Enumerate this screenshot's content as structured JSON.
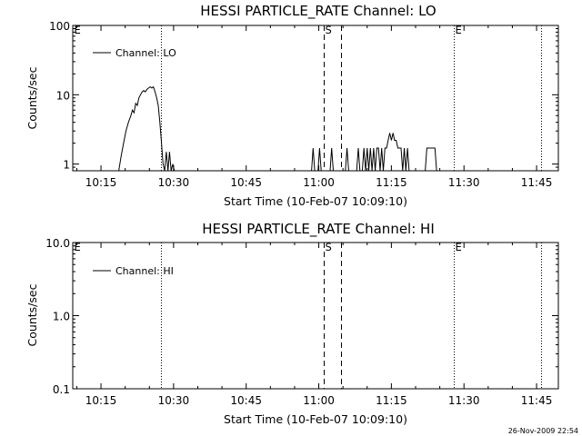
{
  "footer_date": "26-Nov-2009 22:54",
  "chart_data": [
    {
      "type": "line",
      "title": "HESSI PARTICLE_RATE Channel: LO",
      "xlabel": "Start Time (10-Feb-07 10:09:10)",
      "ylabel": "Counts/sec",
      "y_scale": "log",
      "ylim": [
        0.8,
        100
      ],
      "y_ticks": [
        1,
        10,
        100
      ],
      "y_tick_labels": [
        "1",
        "10",
        "100"
      ],
      "xlim": [
        "10:09:10",
        "11:49:30"
      ],
      "x_ticks": [
        "10:15",
        "10:30",
        "10:45",
        "11:00",
        "11:15",
        "11:30",
        "11:45"
      ],
      "legend": {
        "label": "Channel: LO",
        "placement": "top-left"
      },
      "markers": [
        {
          "label": "E",
          "time": "10:09:10",
          "style": "dotted"
        },
        {
          "label": "",
          "time": "10:27:20",
          "style": "dotted"
        },
        {
          "label": "S",
          "time": "11:01:00",
          "style": "dashed"
        },
        {
          "label": "",
          "time": "11:04:40",
          "style": "dashed"
        },
        {
          "label": "E",
          "time": "11:27:50",
          "style": "dotted"
        },
        {
          "label": "",
          "time": "11:46:00",
          "style": "dotted"
        }
      ],
      "series": [
        {
          "x": [
            "10:18:40",
            "10:19:10",
            "10:19:40",
            "10:20:10",
            "10:20:40",
            "10:21:10",
            "10:21:30",
            "10:21:50",
            "10:22:10",
            "10:22:30",
            "10:22:50",
            "10:23:10",
            "10:23:30",
            "10:23:50",
            "10:24:10",
            "10:24:30",
            "10:24:50",
            "10:25:10",
            "10:25:30",
            "10:25:50",
            "10:26:10",
            "10:26:30",
            "10:26:50",
            "10:27:10",
            "10:27:30",
            "10:27:50",
            "10:28:10",
            "10:28:30",
            "10:28:50",
            "10:29:10",
            "10:29:30",
            "10:29:50",
            "10:30:10",
            "10:30:30"
          ],
          "y": [
            0.8,
            1.3,
            2.0,
            3.0,
            4.0,
            5.0,
            6.0,
            5.5,
            7.5,
            7.0,
            9.0,
            10.0,
            11.0,
            11.5,
            11.0,
            12.0,
            12.5,
            13.0,
            12.5,
            13.0,
            11.0,
            9.0,
            7.0,
            4.0,
            2.0,
            1.0,
            0.8,
            1.5,
            0.8,
            1.5,
            0.8,
            1.0,
            0.8,
            0.8
          ]
        },
        {
          "x": [
            "10:58:30",
            "10:58:50",
            "10:59:10",
            "10:59:50",
            "11:00:10",
            "11:00:30",
            "11:02:20",
            "11:02:40",
            "11:03:00",
            "11:05:30",
            "11:05:50",
            "11:06:10",
            "11:07:50",
            "11:08:10",
            "11:08:30",
            "11:09:00",
            "11:09:20",
            "11:09:40",
            "11:10:00",
            "11:10:20",
            "11:10:40",
            "11:11:00",
            "11:11:20",
            "11:11:40",
            "11:12:00",
            "11:12:20",
            "11:12:40",
            "11:13:00",
            "11:13:20",
            "11:13:40",
            "11:14:00",
            "11:14:20",
            "11:14:40",
            "11:15:00",
            "11:15:20",
            "11:15:40",
            "11:16:00",
            "11:16:20",
            "11:16:40",
            "11:17:00",
            "11:17:20",
            "11:17:40",
            "11:18:00",
            "11:18:20",
            "11:18:40",
            "11:19:00",
            "11:22:00",
            "11:22:20",
            "11:23:40",
            "11:24:00",
            "11:24:20"
          ],
          "y": [
            0.8,
            1.7,
            0.8,
            0.8,
            1.7,
            0.8,
            0.8,
            1.7,
            0.8,
            0.8,
            1.7,
            0.8,
            0.8,
            1.7,
            0.8,
            0.8,
            1.7,
            0.8,
            1.7,
            0.8,
            1.7,
            0.8,
            1.7,
            0.8,
            1.7,
            1.7,
            0.8,
            1.7,
            0.8,
            1.7,
            1.7,
            2.2,
            2.8,
            2.2,
            2.8,
            2.2,
            2.2,
            1.7,
            1.7,
            1.7,
            0.8,
            1.7,
            0.8,
            1.7,
            0.8,
            0.8,
            0.8,
            1.7,
            1.7,
            1.7,
            0.8
          ]
        }
      ]
    },
    {
      "type": "line",
      "title": "HESSI PARTICLE_RATE Channel: HI",
      "xlabel": "Start Time (10-Feb-07 10:09:10)",
      "ylabel": "Counts/sec",
      "y_scale": "log",
      "ylim": [
        0.1,
        10
      ],
      "y_ticks": [
        0.1,
        1,
        10
      ],
      "y_tick_labels": [
        "0.1",
        "1.0",
        "10.0"
      ],
      "xlim": [
        "10:09:10",
        "11:49:30"
      ],
      "x_ticks": [
        "10:15",
        "10:30",
        "10:45",
        "11:00",
        "11:15",
        "11:30",
        "11:45"
      ],
      "legend": {
        "label": "Channel: HI",
        "placement": "top-left"
      },
      "markers": [
        {
          "label": "E",
          "time": "10:09:10",
          "style": "dotted"
        },
        {
          "label": "",
          "time": "10:27:20",
          "style": "dotted"
        },
        {
          "label": "S",
          "time": "11:01:00",
          "style": "dashed"
        },
        {
          "label": "",
          "time": "11:04:40",
          "style": "dashed"
        },
        {
          "label": "E",
          "time": "11:27:50",
          "style": "dotted"
        },
        {
          "label": "",
          "time": "11:46:00",
          "style": "dotted"
        }
      ],
      "series": []
    }
  ]
}
